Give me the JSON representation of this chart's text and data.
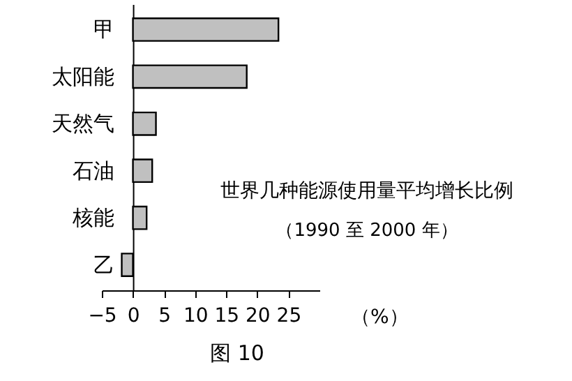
{
  "chart_data": {
    "type": "bar",
    "orientation": "horizontal",
    "title": "世界几种能源使用量平均增长比例",
    "subtitle": "（1990 至 2000 年）",
    "xlabel": "（%）",
    "categories": [
      "甲",
      "太阳能",
      "天然气",
      "石油",
      "核能",
      "乙"
    ],
    "values": [
      23.4,
      18.3,
      3.7,
      3.1,
      2.2,
      -1.8
    ],
    "color": "#c0c0c0",
    "xlim": [
      -5,
      30
    ],
    "xticks": [
      -5,
      0,
      5,
      10,
      15,
      20,
      25
    ],
    "grid": false,
    "annotations": [
      "图 10"
    ]
  }
}
